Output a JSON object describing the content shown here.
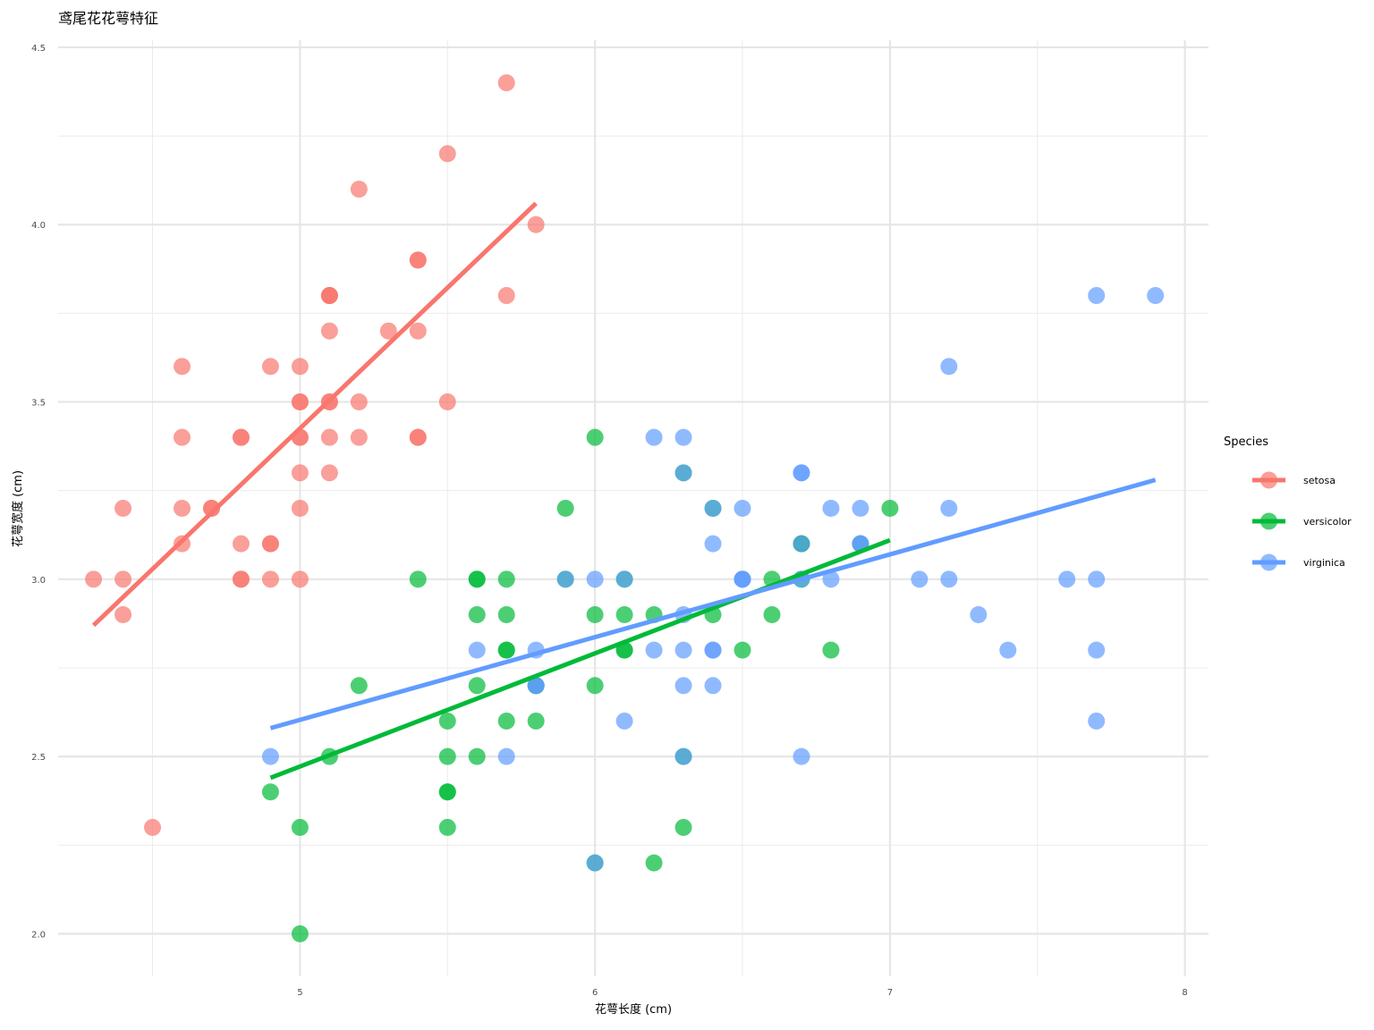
{
  "chart_data": {
    "type": "scatter",
    "title": "鸢尾花花萼特征",
    "xlabel": "花萼长度 (cm)",
    "ylabel": "花萼宽度 (cm)",
    "xlim": [
      4.18,
      8.08
    ],
    "ylim": [
      1.88,
      4.52
    ],
    "x_ticks": [
      5,
      6,
      7,
      8
    ],
    "x_tick_labels": [
      "5",
      "6",
      "7",
      "8"
    ],
    "y_ticks": [
      2.0,
      2.5,
      3.0,
      3.5,
      4.0,
      4.5
    ],
    "y_tick_labels": [
      "2.0",
      "2.5",
      "3.0",
      "3.5",
      "4.0",
      "4.5"
    ],
    "grid": true,
    "legend": {
      "title": "Species",
      "position": "right"
    },
    "series": [
      {
        "name": "setosa",
        "color": "#F8766D",
        "points": [
          [
            5.1,
            3.5
          ],
          [
            4.9,
            3.0
          ],
          [
            4.7,
            3.2
          ],
          [
            4.6,
            3.1
          ],
          [
            5.0,
            3.6
          ],
          [
            5.4,
            3.9
          ],
          [
            4.6,
            3.4
          ],
          [
            5.0,
            3.4
          ],
          [
            4.4,
            2.9
          ],
          [
            4.9,
            3.1
          ],
          [
            5.4,
            3.7
          ],
          [
            4.8,
            3.4
          ],
          [
            4.8,
            3.0
          ],
          [
            4.3,
            3.0
          ],
          [
            5.8,
            4.0
          ],
          [
            5.7,
            4.4
          ],
          [
            5.4,
            3.9
          ],
          [
            5.1,
            3.5
          ],
          [
            5.7,
            3.8
          ],
          [
            5.1,
            3.8
          ],
          [
            5.4,
            3.4
          ],
          [
            5.1,
            3.7
          ],
          [
            4.6,
            3.6
          ],
          [
            5.1,
            3.3
          ],
          [
            4.8,
            3.4
          ],
          [
            5.0,
            3.0
          ],
          [
            5.0,
            3.4
          ],
          [
            5.2,
            3.5
          ],
          [
            5.2,
            3.4
          ],
          [
            4.7,
            3.2
          ],
          [
            4.8,
            3.1
          ],
          [
            5.4,
            3.4
          ],
          [
            5.2,
            4.1
          ],
          [
            5.5,
            4.2
          ],
          [
            4.9,
            3.1
          ],
          [
            5.0,
            3.2
          ],
          [
            5.5,
            3.5
          ],
          [
            4.9,
            3.6
          ],
          [
            4.4,
            3.0
          ],
          [
            5.1,
            3.4
          ],
          [
            5.0,
            3.5
          ],
          [
            4.5,
            2.3
          ],
          [
            4.4,
            3.2
          ],
          [
            5.0,
            3.5
          ],
          [
            5.1,
            3.8
          ],
          [
            4.8,
            3.0
          ],
          [
            5.1,
            3.8
          ],
          [
            4.6,
            3.2
          ],
          [
            5.3,
            3.7
          ],
          [
            5.0,
            3.3
          ]
        ],
        "fit": [
          [
            4.3,
            2.87
          ],
          [
            5.8,
            4.06
          ]
        ]
      },
      {
        "name": "versicolor",
        "color": "#00BA38",
        "points": [
          [
            7.0,
            3.2
          ],
          [
            6.4,
            3.2
          ],
          [
            6.9,
            3.1
          ],
          [
            5.5,
            2.3
          ],
          [
            6.5,
            2.8
          ],
          [
            5.7,
            2.8
          ],
          [
            6.3,
            3.3
          ],
          [
            4.9,
            2.4
          ],
          [
            6.6,
            2.9
          ],
          [
            5.2,
            2.7
          ],
          [
            5.0,
            2.0
          ],
          [
            5.9,
            3.0
          ],
          [
            6.0,
            2.2
          ],
          [
            6.1,
            2.9
          ],
          [
            5.6,
            2.9
          ],
          [
            6.7,
            3.1
          ],
          [
            5.6,
            3.0
          ],
          [
            5.8,
            2.7
          ],
          [
            6.2,
            2.2
          ],
          [
            5.6,
            2.5
          ],
          [
            5.9,
            3.2
          ],
          [
            6.1,
            2.8
          ],
          [
            6.3,
            2.5
          ],
          [
            6.1,
            2.8
          ],
          [
            6.4,
            2.9
          ],
          [
            6.6,
            3.0
          ],
          [
            6.8,
            2.8
          ],
          [
            6.7,
            3.0
          ],
          [
            6.0,
            2.9
          ],
          [
            5.7,
            2.6
          ],
          [
            5.5,
            2.4
          ],
          [
            5.5,
            2.4
          ],
          [
            5.8,
            2.7
          ],
          [
            6.0,
            2.7
          ],
          [
            5.4,
            3.0
          ],
          [
            6.0,
            3.4
          ],
          [
            6.7,
            3.1
          ],
          [
            6.3,
            2.3
          ],
          [
            5.6,
            3.0
          ],
          [
            5.5,
            2.5
          ],
          [
            5.5,
            2.6
          ],
          [
            6.1,
            3.0
          ],
          [
            5.8,
            2.6
          ],
          [
            5.0,
            2.3
          ],
          [
            5.6,
            2.7
          ],
          [
            5.7,
            3.0
          ],
          [
            5.7,
            2.9
          ],
          [
            6.2,
            2.9
          ],
          [
            5.1,
            2.5
          ],
          [
            5.7,
            2.8
          ]
        ],
        "fit": [
          [
            4.9,
            2.44
          ],
          [
            7.0,
            3.11
          ]
        ]
      },
      {
        "name": "virginica",
        "color": "#619CFF",
        "points": [
          [
            6.3,
            3.3
          ],
          [
            5.8,
            2.7
          ],
          [
            7.1,
            3.0
          ],
          [
            6.3,
            2.9
          ],
          [
            6.5,
            3.0
          ],
          [
            7.6,
            3.0
          ],
          [
            4.9,
            2.5
          ],
          [
            7.3,
            2.9
          ],
          [
            6.7,
            2.5
          ],
          [
            7.2,
            3.6
          ],
          [
            6.5,
            3.2
          ],
          [
            6.4,
            2.7
          ],
          [
            6.8,
            3.0
          ],
          [
            5.7,
            2.5
          ],
          [
            5.8,
            2.8
          ],
          [
            6.4,
            3.2
          ],
          [
            6.5,
            3.0
          ],
          [
            7.7,
            3.8
          ],
          [
            7.7,
            2.6
          ],
          [
            6.0,
            2.2
          ],
          [
            6.9,
            3.2
          ],
          [
            5.6,
            2.8
          ],
          [
            7.7,
            2.8
          ],
          [
            6.3,
            2.7
          ],
          [
            6.7,
            3.3
          ],
          [
            7.2,
            3.2
          ],
          [
            6.2,
            2.8
          ],
          [
            6.1,
            3.0
          ],
          [
            6.4,
            2.8
          ],
          [
            7.2,
            3.0
          ],
          [
            7.4,
            2.8
          ],
          [
            7.9,
            3.8
          ],
          [
            6.4,
            2.8
          ],
          [
            6.3,
            2.8
          ],
          [
            6.1,
            2.6
          ],
          [
            7.7,
            3.0
          ],
          [
            6.3,
            3.4
          ],
          [
            6.4,
            3.1
          ],
          [
            6.0,
            3.0
          ],
          [
            6.9,
            3.1
          ],
          [
            6.7,
            3.1
          ],
          [
            6.9,
            3.1
          ],
          [
            5.8,
            2.7
          ],
          [
            6.8,
            3.2
          ],
          [
            6.7,
            3.3
          ],
          [
            6.7,
            3.0
          ],
          [
            6.3,
            2.5
          ],
          [
            6.5,
            3.0
          ],
          [
            6.2,
            3.4
          ],
          [
            5.9,
            3.0
          ]
        ],
        "fit": [
          [
            4.9,
            2.58
          ],
          [
            7.9,
            3.28
          ]
        ]
      }
    ]
  }
}
